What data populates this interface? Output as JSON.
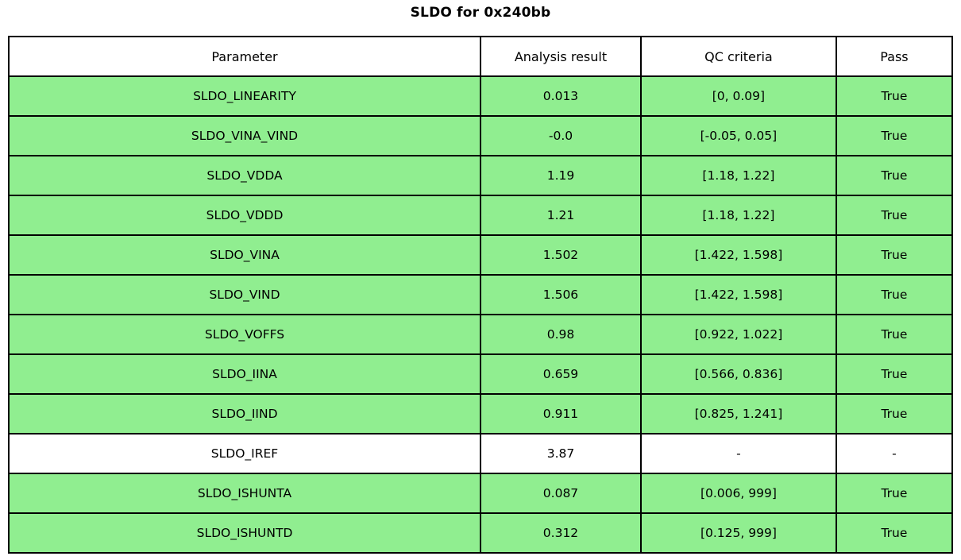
{
  "title": "SLDO for 0x240bb",
  "table": {
    "headers": [
      "Parameter",
      "Analysis result",
      "QC criteria",
      "Pass"
    ],
    "rows": [
      {
        "parameter": "SLDO_LINEARITY",
        "result": "0.013",
        "criteria": "[0, 0.09]",
        "pass": "True",
        "highlight": true
      },
      {
        "parameter": "SLDO_VINA_VIND",
        "result": "-0.0",
        "criteria": "[-0.05, 0.05]",
        "pass": "True",
        "highlight": true
      },
      {
        "parameter": "SLDO_VDDA",
        "result": "1.19",
        "criteria": "[1.18, 1.22]",
        "pass": "True",
        "highlight": true
      },
      {
        "parameter": "SLDO_VDDD",
        "result": "1.21",
        "criteria": "[1.18, 1.22]",
        "pass": "True",
        "highlight": true
      },
      {
        "parameter": "SLDO_VINA",
        "result": "1.502",
        "criteria": "[1.422, 1.598]",
        "pass": "True",
        "highlight": true
      },
      {
        "parameter": "SLDO_VIND",
        "result": "1.506",
        "criteria": "[1.422, 1.598]",
        "pass": "True",
        "highlight": true
      },
      {
        "parameter": "SLDO_VOFFS",
        "result": "0.98",
        "criteria": "[0.922, 1.022]",
        "pass": "True",
        "highlight": true
      },
      {
        "parameter": "SLDO_IINA",
        "result": "0.659",
        "criteria": "[0.566, 0.836]",
        "pass": "True",
        "highlight": true
      },
      {
        "parameter": "SLDO_IIND",
        "result": "0.911",
        "criteria": "[0.825, 1.241]",
        "pass": "True",
        "highlight": true
      },
      {
        "parameter": "SLDO_IREF",
        "result": "3.87",
        "criteria": "-",
        "pass": "-",
        "highlight": false
      },
      {
        "parameter": "SLDO_ISHUNTA",
        "result": "0.087",
        "criteria": "[0.006, 999]",
        "pass": "True",
        "highlight": true
      },
      {
        "parameter": "SLDO_ISHUNTD",
        "result": "0.312",
        "criteria": "[0.125, 999]",
        "pass": "True",
        "highlight": true
      }
    ]
  },
  "colors": {
    "pass_row_bg": "#90EE90",
    "neutral_row_bg": "#FFFFFF",
    "header_bg": "#FFFFFF",
    "border": "#000000"
  },
  "chart_data": {
    "type": "table",
    "title": "SLDO for 0x240bb",
    "columns": [
      "Parameter",
      "Analysis result",
      "QC criteria",
      "Pass"
    ],
    "rows": [
      [
        "SLDO_LINEARITY",
        0.013,
        "[0, 0.09]",
        "True"
      ],
      [
        "SLDO_VINA_VIND",
        -0.0,
        "[-0.05, 0.05]",
        "True"
      ],
      [
        "SLDO_VDDA",
        1.19,
        "[1.18, 1.22]",
        "True"
      ],
      [
        "SLDO_VDDD",
        1.21,
        "[1.18, 1.22]",
        "True"
      ],
      [
        "SLDO_VINA",
        1.502,
        "[1.422, 1.598]",
        "True"
      ],
      [
        "SLDO_VIND",
        1.506,
        "[1.422, 1.598]",
        "True"
      ],
      [
        "SLDO_VOFFS",
        0.98,
        "[0.922, 1.022]",
        "True"
      ],
      [
        "SLDO_IINA",
        0.659,
        "[0.566, 0.836]",
        "True"
      ],
      [
        "SLDO_IIND",
        0.911,
        "[0.825, 1.241]",
        "True"
      ],
      [
        "SLDO_IREF",
        3.87,
        "-",
        "-"
      ],
      [
        "SLDO_ISHUNTA",
        0.087,
        "[0.006, 999]",
        "True"
      ],
      [
        "SLDO_ISHUNTD",
        0.312,
        "[0.125, 999]",
        "True"
      ]
    ],
    "layout_hints": {
      "highlight_color": "#90EE90",
      "highlighted_rows_condition": "Pass == True",
      "grid": true,
      "legend": false
    }
  }
}
